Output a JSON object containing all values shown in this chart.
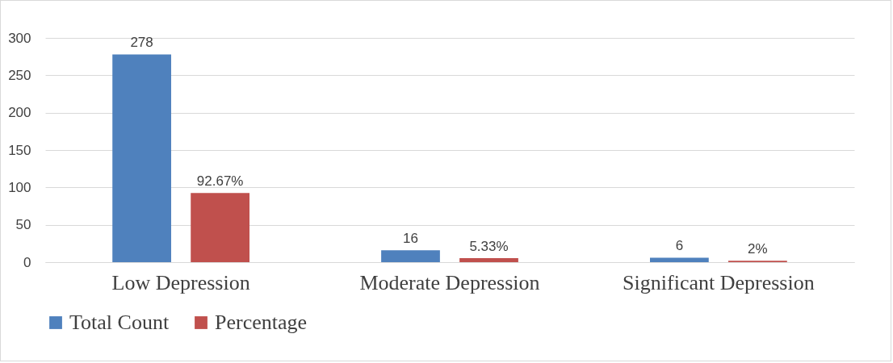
{
  "chart_data": {
    "type": "bar",
    "categories": [
      "Low Depression",
      "Moderate Depression",
      "Significant Depression"
    ],
    "series": [
      {
        "name": "Total Count",
        "color": "#4f81bd",
        "values": [
          278,
          16,
          6
        ],
        "value_labels": [
          "278",
          "16",
          "6"
        ]
      },
      {
        "name": "Percentage",
        "color": "#c0504d",
        "values": [
          92.67,
          5.33,
          2
        ],
        "value_labels": [
          "92.67%",
          "5.33%",
          "2%"
        ]
      }
    ],
    "ylim": [
      0,
      300
    ],
    "yticks": [
      0,
      50,
      100,
      150,
      200,
      250,
      300
    ],
    "grid": "y",
    "legend": "bottom"
  }
}
